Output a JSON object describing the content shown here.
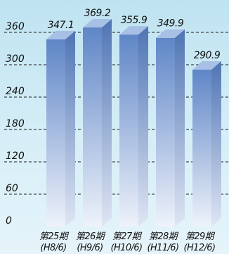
{
  "chart_data": {
    "type": "bar",
    "title": "",
    "xlabel": "",
    "ylabel": "",
    "categories": [
      {
        "line1": "第25期",
        "line2": "(H8/6)"
      },
      {
        "line1": "第26期",
        "line2": "(H9/6)"
      },
      {
        "line1": "第27期",
        "line2": "(H10/6)"
      },
      {
        "line1": "第28期",
        "line2": "(H11/6)"
      },
      {
        "line1": "第29期",
        "line2": "(H12/6)"
      }
    ],
    "values": [
      347.1,
      369.2,
      355.9,
      349.9,
      290.9
    ],
    "value_labels": [
      "347.1",
      "369.2",
      "355.9",
      "349.9",
      "290.9"
    ],
    "ylim": [
      0,
      360
    ],
    "yticks": [
      0,
      60,
      120,
      180,
      240,
      300,
      360
    ],
    "ytick_labels": [
      "0",
      "60",
      "120",
      "180",
      "240",
      "300",
      "360"
    ],
    "grid": true,
    "style": "3d-bar",
    "colors": {
      "background_top": "#bfe3f1",
      "background_bottom": "#e6f4fa",
      "bar_top": "#5f86c7",
      "bar_bottom": "#eef2fa",
      "bar_side": "#4f74b4",
      "bar_cap": "#a9c0e6",
      "grid": "#1a1a1a",
      "text": "#111111"
    }
  }
}
